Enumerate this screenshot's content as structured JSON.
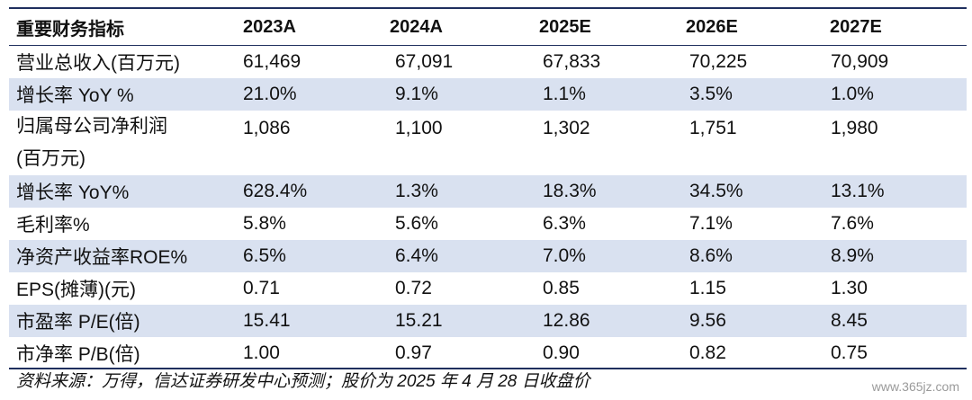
{
  "header": [
    "重要财务指标",
    "2023A",
    "2024A",
    "2025E",
    "2026E",
    "2027E"
  ],
  "rows": [
    {
      "label": "营业总收入(百万元)",
      "values": [
        "61,469",
        "67,091",
        "67,833",
        "70,225",
        "70,909"
      ]
    },
    {
      "label": "增长率 YoY %",
      "values": [
        "21.0%",
        "9.1%",
        "1.1%",
        "3.5%",
        "1.0%"
      ]
    },
    {
      "label": "归属母公司净利润",
      "label2": "(百万元)",
      "values": [
        "1,086",
        "1,100",
        "1,302",
        "1,751",
        "1,980"
      ]
    },
    {
      "label": "增长率 YoY%",
      "values": [
        "628.4%",
        "1.3%",
        "18.3%",
        "34.5%",
        "13.1%"
      ]
    },
    {
      "label": "毛利率%",
      "values": [
        "5.8%",
        "5.6%",
        "6.3%",
        "7.1%",
        "7.6%"
      ]
    },
    {
      "label": "净资产收益率ROE%",
      "values": [
        "6.5%",
        "6.4%",
        "7.0%",
        "8.6%",
        "8.9%"
      ]
    },
    {
      "label": "EPS(摊薄)(元)",
      "values": [
        "0.71",
        "0.72",
        "0.85",
        "1.15",
        "1.30"
      ]
    },
    {
      "label": "市盈率 P/E(倍)",
      "values": [
        "15.41",
        "15.21",
        "12.86",
        "9.56",
        "8.45"
      ]
    },
    {
      "label": "市净率 P/B(倍)",
      "values": [
        "1.00",
        "0.97",
        "0.90",
        "0.82",
        "0.75"
      ]
    }
  ],
  "source": "资料来源：万得，信达证券研发中心预测；股价为 2025 年 4 月 28 日收盘价",
  "watermark": "www.365jz.com",
  "colors": {
    "rule": "#1f2f5e",
    "shade": "#d9e1f0"
  }
}
